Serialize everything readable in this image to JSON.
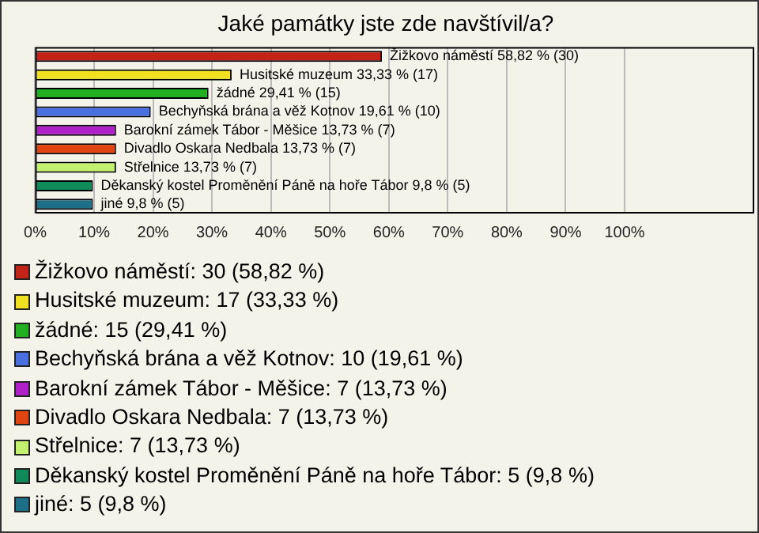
{
  "chart_data": {
    "type": "bar",
    "orientation": "horizontal",
    "title": "Jaké památky jste zde navštívil/a?",
    "categories": [
      "Žižkovo náměstí",
      "Husitské muzeum",
      "žádné",
      "Bechyňská brána a věž Kotnov",
      "Barokní zámek Tábor - Měšice",
      "Divadlo Oskara Nedbala",
      "Střelnice",
      "Děkanský kostel Proměnění Páně na hoře Tábor",
      "jiné"
    ],
    "values": [
      58.82,
      33.33,
      29.41,
      19.61,
      13.73,
      13.73,
      13.73,
      9.8,
      9.8
    ],
    "colors": [
      "#c42418",
      "#f0e020",
      "#22b022",
      "#4a70e0",
      "#b020c8",
      "#e04410",
      "#c4f070",
      "#108a58",
      "#1e7088"
    ],
    "value_labels": [
      "58,82 % (30)",
      "33,33 % (17)",
      "29,41 % (15)",
      "19,61 % (10)",
      "13,73 % (7)",
      "13,73 % (7)",
      "13,73 % (7)",
      "9,8 % (5)",
      "9,8 % (5)"
    ],
    "annotations": [
      "Žižkovo náměstí: 30 (58,82 %)",
      "Husitské muzeum: 17 (33,33 %)",
      "žádné: 15 (29,41 %)",
      "Bechyňská brána a věž Kotnov: 10 (19,61 %)",
      "Barokní zámek Tábor - Měšice: 7 (13,73 %)",
      "Divadlo Oskara Nedbala: 7 (13,73 %)",
      "Střelnice: 7 (13,73 %)",
      "Děkanský kostel Proměnění Páně na hoře Tábor: 5 (9,8 %)",
      "jiné: 5 (9,8 %)"
    ],
    "xlim": [
      0,
      122
    ],
    "xticks": [
      {
        "value": 0,
        "label": "0%"
      },
      {
        "value": 10,
        "label": "10%"
      },
      {
        "value": 20,
        "label": "20%"
      },
      {
        "value": 30,
        "label": "30%"
      },
      {
        "value": 40,
        "label": "40%"
      },
      {
        "value": 50,
        "label": "50%"
      },
      {
        "value": 60,
        "label": "60%"
      },
      {
        "value": 70,
        "label": "70%"
      },
      {
        "value": 80,
        "label": "80%"
      },
      {
        "value": 90,
        "label": "90%"
      },
      {
        "value": 100,
        "label": "100%"
      }
    ],
    "grid": "x",
    "tick_labels": "x"
  }
}
